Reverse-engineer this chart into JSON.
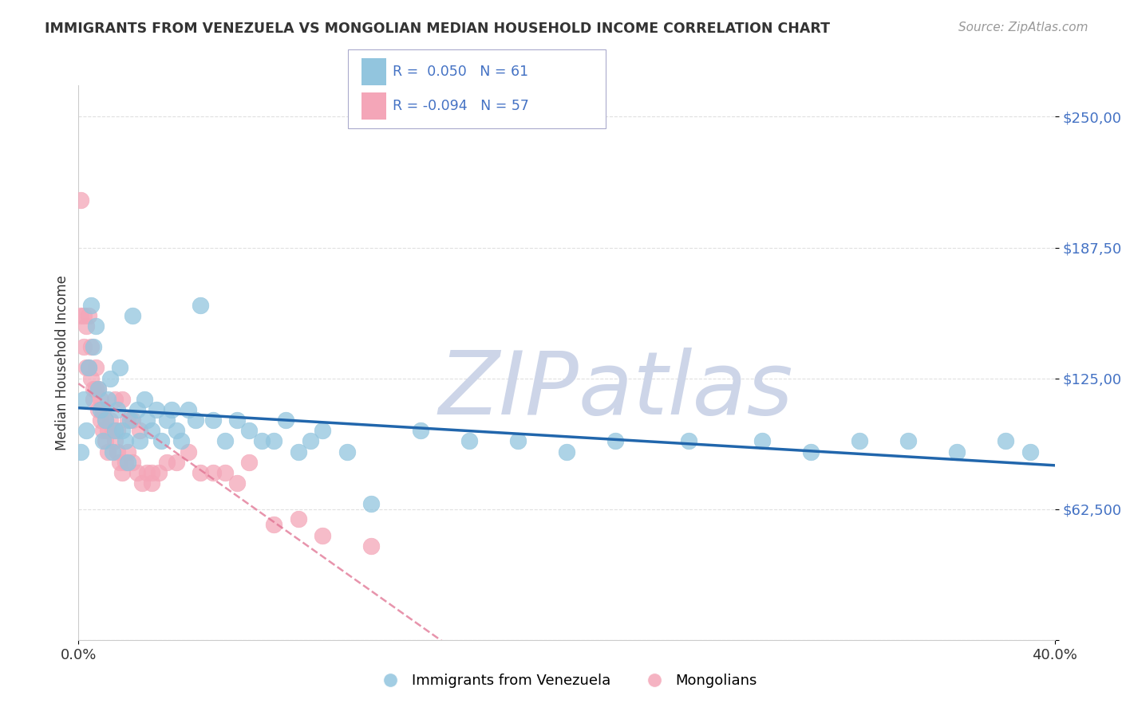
{
  "title": "IMMIGRANTS FROM VENEZUELA VS MONGOLIAN MEDIAN HOUSEHOLD INCOME CORRELATION CHART",
  "source": "Source: ZipAtlas.com",
  "ylabel": "Median Household Income",
  "y_ticks": [
    0,
    62500,
    125000,
    187500,
    250000
  ],
  "y_tick_labels": [
    "",
    "$62,500",
    "$125,000",
    "$187,500",
    "$250,000"
  ],
  "x_min": 0.0,
  "x_max": 0.4,
  "y_min": 0,
  "y_max": 265000,
  "series1_label": "Immigrants from Venezuela",
  "series1_R": 0.05,
  "series1_N": 61,
  "series1_color": "#92c5de",
  "series1_edge": "#92c5de",
  "series1_trend_color": "#2166ac",
  "series2_label": "Mongolians",
  "series2_R": -0.094,
  "series2_N": 57,
  "series2_color": "#f4a6b8",
  "series2_edge": "#f4a6b8",
  "series2_trend_color": "#e07090",
  "watermark": "ZIPatlas",
  "watermark_color": "#cdd5e8",
  "background_color": "#ffffff",
  "grid_color": "#cccccc",
  "venezuela_x": [
    0.001,
    0.002,
    0.003,
    0.004,
    0.005,
    0.006,
    0.007,
    0.008,
    0.009,
    0.01,
    0.011,
    0.012,
    0.013,
    0.014,
    0.015,
    0.016,
    0.017,
    0.018,
    0.019,
    0.02,
    0.021,
    0.022,
    0.024,
    0.025,
    0.027,
    0.028,
    0.03,
    0.032,
    0.034,
    0.036,
    0.038,
    0.04,
    0.042,
    0.045,
    0.048,
    0.05,
    0.055,
    0.06,
    0.065,
    0.07,
    0.075,
    0.08,
    0.085,
    0.09,
    0.095,
    0.1,
    0.11,
    0.12,
    0.14,
    0.16,
    0.18,
    0.2,
    0.22,
    0.25,
    0.28,
    0.3,
    0.32,
    0.34,
    0.36,
    0.38,
    0.39
  ],
  "venezuela_y": [
    90000,
    115000,
    100000,
    130000,
    160000,
    140000,
    150000,
    120000,
    110000,
    95000,
    105000,
    115000,
    125000,
    90000,
    100000,
    110000,
    130000,
    100000,
    95000,
    85000,
    105000,
    155000,
    110000,
    95000,
    115000,
    105000,
    100000,
    110000,
    95000,
    105000,
    110000,
    100000,
    95000,
    110000,
    105000,
    160000,
    105000,
    95000,
    105000,
    100000,
    95000,
    95000,
    105000,
    90000,
    95000,
    100000,
    90000,
    65000,
    100000,
    95000,
    95000,
    90000,
    95000,
    95000,
    95000,
    90000,
    95000,
    95000,
    90000,
    95000,
    90000
  ],
  "mongolian_x": [
    0.001,
    0.001,
    0.002,
    0.002,
    0.003,
    0.003,
    0.004,
    0.004,
    0.005,
    0.005,
    0.006,
    0.006,
    0.007,
    0.007,
    0.008,
    0.008,
    0.009,
    0.009,
    0.01,
    0.01,
    0.011,
    0.011,
    0.012,
    0.012,
    0.013,
    0.014,
    0.015,
    0.016,
    0.017,
    0.018,
    0.019,
    0.02,
    0.022,
    0.024,
    0.026,
    0.028,
    0.03,
    0.033,
    0.036,
    0.04,
    0.045,
    0.05,
    0.055,
    0.06,
    0.065,
    0.07,
    0.08,
    0.09,
    0.1,
    0.12,
    0.015,
    0.016,
    0.018,
    0.02,
    0.022,
    0.025,
    0.03
  ],
  "mongolian_y": [
    210000,
    155000,
    155000,
    140000,
    130000,
    150000,
    155000,
    130000,
    140000,
    125000,
    120000,
    115000,
    130000,
    120000,
    110000,
    120000,
    115000,
    105000,
    110000,
    100000,
    105000,
    95000,
    100000,
    90000,
    105000,
    100000,
    95000,
    90000,
    85000,
    80000,
    85000,
    90000,
    85000,
    80000,
    75000,
    80000,
    75000,
    80000,
    85000,
    85000,
    90000,
    80000,
    80000,
    80000,
    75000,
    85000,
    55000,
    58000,
    50000,
    45000,
    115000,
    100000,
    115000,
    105000,
    105000,
    100000,
    80000
  ]
}
